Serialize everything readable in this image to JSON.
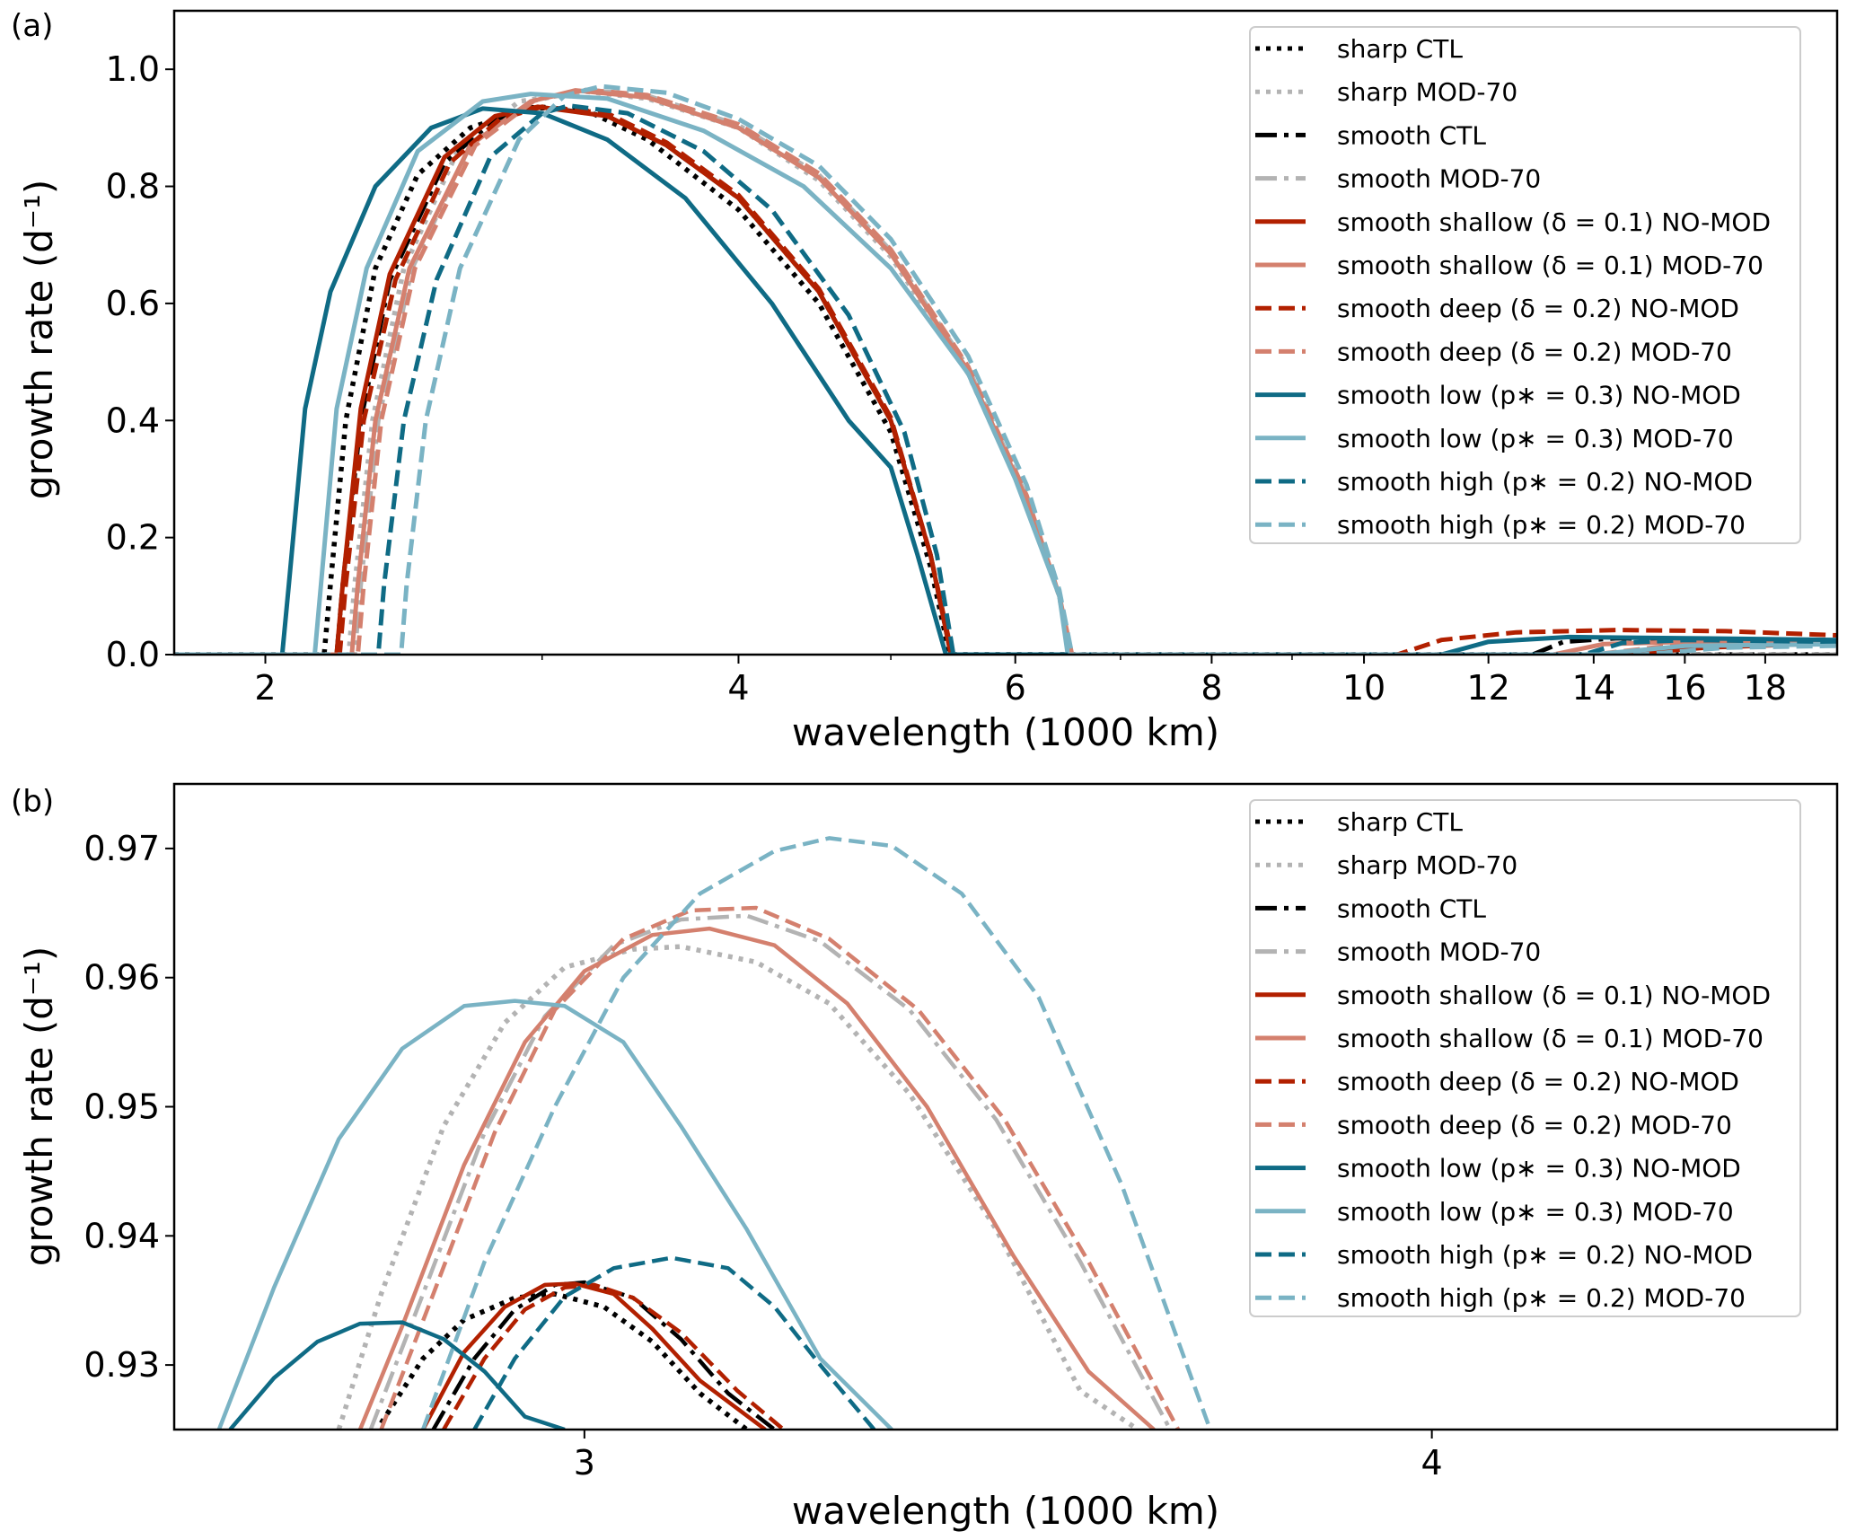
{
  "chart_data": [
    {
      "type": "line",
      "panel_label": "(a)",
      "xlabel": "wavelength (1000 km)",
      "ylabel": "growth rate (d⁻¹)",
      "xscale": "log",
      "xlim": [
        1.75,
        20
      ],
      "ylim": [
        0.0,
        1.1
      ],
      "xticks": [
        2,
        4,
        6,
        8,
        10,
        12,
        14,
        16,
        18
      ],
      "xtick_labels": [
        "2",
        "4",
        "6",
        "8",
        "10",
        "12",
        "14",
        "16",
        "18"
      ],
      "xminor": [
        3,
        5,
        7,
        9
      ],
      "yticks": [
        0.0,
        0.2,
        0.4,
        0.6,
        0.8,
        1.0
      ],
      "ytick_labels": [
        "0.0",
        "0.2",
        "0.4",
        "0.6",
        "0.8",
        "1.0"
      ],
      "grid": false,
      "legend_position": "top-right",
      "series": [
        {
          "name": "sharp CTL",
          "color": "#000000",
          "style": "dotted",
          "alpha": 1.0,
          "x": [
            1.75,
            2.18,
            2.2,
            2.25,
            2.35,
            2.5,
            2.7,
            2.95,
            3.2,
            3.5,
            4.0,
            4.5,
            5.0,
            5.3,
            5.45,
            5.46,
            20
          ],
          "y": [
            0,
            0,
            0.12,
            0.4,
            0.66,
            0.82,
            0.9,
            0.935,
            0.93,
            0.88,
            0.76,
            0.6,
            0.38,
            0.15,
            0,
            0,
            0
          ]
        },
        {
          "name": "sharp MOD-70",
          "color": "#b3b3b3",
          "style": "dotted",
          "alpha": 1.0,
          "x": [
            1.75,
            2.26,
            2.28,
            2.34,
            2.45,
            2.65,
            2.9,
            3.2,
            3.5,
            4.0,
            4.5,
            5.0,
            5.6,
            6.1,
            6.4,
            6.5,
            6.51,
            20
          ],
          "y": [
            0,
            0,
            0.12,
            0.4,
            0.66,
            0.86,
            0.945,
            0.962,
            0.95,
            0.9,
            0.81,
            0.68,
            0.48,
            0.26,
            0.1,
            0,
            0,
            0
          ]
        },
        {
          "name": "smooth CTL",
          "color": "#000000",
          "style": "dashdot",
          "alpha": 1.0,
          "x": [
            1.75,
            2.22,
            2.24,
            2.3,
            2.4,
            2.6,
            2.8,
            3.0,
            3.3,
            3.6,
            4.0,
            4.5,
            5.0,
            5.3,
            5.46,
            5.47,
            12.8,
            13.4,
            14.5,
            16.0,
            20
          ],
          "y": [
            0,
            0,
            0.12,
            0.4,
            0.64,
            0.84,
            0.915,
            0.936,
            0.92,
            0.87,
            0.78,
            0.62,
            0.4,
            0.17,
            0,
            0,
            0,
            0.022,
            0.028,
            0.025,
            0.02
          ]
        },
        {
          "name": "smooth MOD-70",
          "color": "#b3b3b3",
          "style": "dashdot",
          "alpha": 1.0,
          "x": [
            1.75,
            2.28,
            2.3,
            2.36,
            2.48,
            2.7,
            2.95,
            3.2,
            3.5,
            4.0,
            4.5,
            5.0,
            5.6,
            6.1,
            6.4,
            6.5,
            6.51,
            20
          ],
          "y": [
            0,
            0,
            0.12,
            0.4,
            0.66,
            0.87,
            0.945,
            0.965,
            0.955,
            0.905,
            0.82,
            0.69,
            0.49,
            0.27,
            0.1,
            0,
            0,
            0
          ]
        },
        {
          "name": "smooth shallow (δ = 0.1) NO-MOD",
          "color": "#b22000",
          "style": "solid",
          "alpha": 1.0,
          "x": [
            1.75,
            2.22,
            2.24,
            2.3,
            2.4,
            2.6,
            2.8,
            2.98,
            3.3,
            3.6,
            4.0,
            4.5,
            5.0,
            5.3,
            5.46,
            5.47,
            14.5,
            16.5,
            20
          ],
          "y": [
            0,
            0,
            0.12,
            0.42,
            0.65,
            0.85,
            0.92,
            0.936,
            0.92,
            0.87,
            0.78,
            0.62,
            0.4,
            0.17,
            0,
            0,
            0,
            0.012,
            0.02
          ]
        },
        {
          "name": "smooth shallow (δ = 0.1) MOD-70",
          "color": "#d4806e",
          "style": "solid",
          "alpha": 1.0,
          "x": [
            1.75,
            2.27,
            2.29,
            2.35,
            2.47,
            2.7,
            2.95,
            3.15,
            3.5,
            4.0,
            4.5,
            5.0,
            5.6,
            6.1,
            6.4,
            6.5,
            6.51,
            13.2,
            14.2,
            16.0,
            20
          ],
          "y": [
            0,
            0,
            0.12,
            0.4,
            0.66,
            0.87,
            0.945,
            0.964,
            0.952,
            0.9,
            0.815,
            0.685,
            0.485,
            0.265,
            0.1,
            0,
            0,
            0,
            0.018,
            0.022,
            0.018
          ]
        },
        {
          "name": "smooth deep (δ = 0.2) NO-MOD",
          "color": "#b22000",
          "style": "dashed",
          "alpha": 1.0,
          "x": [
            1.75,
            2.23,
            2.25,
            2.31,
            2.42,
            2.62,
            2.82,
            3.0,
            3.3,
            3.6,
            4.0,
            4.5,
            5.0,
            5.3,
            5.47,
            5.48,
            10.5,
            11.2,
            12.5,
            14.5,
            17.0,
            20
          ],
          "y": [
            0,
            0,
            0.12,
            0.4,
            0.64,
            0.84,
            0.915,
            0.936,
            0.925,
            0.875,
            0.785,
            0.625,
            0.405,
            0.17,
            0,
            0,
            0,
            0.025,
            0.038,
            0.042,
            0.04,
            0.033
          ]
        },
        {
          "name": "smooth deep (δ = 0.2) MOD-70",
          "color": "#d4806e",
          "style": "dashed",
          "alpha": 1.0,
          "x": [
            1.75,
            2.29,
            2.31,
            2.37,
            2.49,
            2.72,
            2.97,
            3.2,
            3.5,
            4.0,
            4.5,
            5.0,
            5.6,
            6.1,
            6.4,
            6.52,
            6.53,
            14.0,
            16.0,
            20
          ],
          "y": [
            0,
            0,
            0.12,
            0.4,
            0.66,
            0.87,
            0.948,
            0.965,
            0.956,
            0.906,
            0.822,
            0.692,
            0.492,
            0.272,
            0.1,
            0,
            0,
            0,
            0.018,
            0.02
          ]
        },
        {
          "name": "smooth low (p∗ = 0.3) NO-MOD",
          "color": "#0f6b85",
          "style": "solid",
          "alpha": 1.0,
          "x": [
            1.75,
            2.05,
            2.07,
            2.12,
            2.2,
            2.35,
            2.55,
            2.75,
            3.0,
            3.3,
            3.7,
            4.2,
            4.7,
            5.0,
            5.2,
            5.42,
            5.43,
            11.2,
            12.0,
            13.5,
            16.0,
            20
          ],
          "y": [
            0,
            0,
            0.12,
            0.42,
            0.62,
            0.8,
            0.9,
            0.933,
            0.925,
            0.88,
            0.78,
            0.6,
            0.4,
            0.32,
            0.17,
            0,
            0,
            0,
            0.022,
            0.03,
            0.028,
            0.025
          ]
        },
        {
          "name": "smooth low (p∗ = 0.3) MOD-70",
          "color": "#7ab3c4",
          "style": "solid",
          "alpha": 1.0,
          "x": [
            1.75,
            2.15,
            2.17,
            2.22,
            2.32,
            2.5,
            2.75,
            2.95,
            3.3,
            3.8,
            4.4,
            5.0,
            5.6,
            6.0,
            6.4,
            6.48,
            6.49,
            14.0,
            16.0,
            20
          ],
          "y": [
            0,
            0,
            0.12,
            0.42,
            0.66,
            0.86,
            0.945,
            0.958,
            0.95,
            0.895,
            0.8,
            0.66,
            0.48,
            0.3,
            0.1,
            0,
            0,
            0,
            0.015,
            0.018
          ]
        },
        {
          "name": "smooth high (p∗ = 0.2) NO-MOD",
          "color": "#0f6b85",
          "style": "dashed",
          "alpha": 1.0,
          "x": [
            1.75,
            2.36,
            2.38,
            2.45,
            2.57,
            2.78,
            3.0,
            3.12,
            3.4,
            3.8,
            4.2,
            4.7,
            5.1,
            5.35,
            5.48,
            5.49,
            13.8,
            14.6,
            16.0,
            20
          ],
          "y": [
            0,
            0,
            0.12,
            0.4,
            0.64,
            0.85,
            0.925,
            0.938,
            0.925,
            0.86,
            0.76,
            0.58,
            0.38,
            0.17,
            0,
            0,
            0,
            0.02,
            0.025,
            0.022
          ]
        },
        {
          "name": "smooth high (p∗ = 0.2) MOD-70",
          "color": "#7ab3c4",
          "style": "dashed",
          "alpha": 1.0,
          "x": [
            1.75,
            2.44,
            2.46,
            2.53,
            2.66,
            2.9,
            3.1,
            3.27,
            3.6,
            4.0,
            4.5,
            5.0,
            5.6,
            6.1,
            6.4,
            6.52,
            6.53,
            15.0,
            17.0,
            20
          ],
          "y": [
            0,
            0,
            0.12,
            0.4,
            0.66,
            0.88,
            0.955,
            0.971,
            0.96,
            0.915,
            0.835,
            0.71,
            0.51,
            0.29,
            0.11,
            0,
            0,
            0,
            0.012,
            0.015
          ]
        }
      ]
    },
    {
      "type": "line",
      "panel_label": "(b)",
      "xlabel": "wavelength (1000 km)",
      "ylabel": "growth rate (d⁻¹)",
      "xscale": "log",
      "xlim": [
        2.61,
        4.59
      ],
      "ylim": [
        0.925,
        0.975
      ],
      "xticks": [
        3,
        4
      ],
      "xtick_labels": [
        "3",
        "4"
      ],
      "yticks": [
        0.93,
        0.94,
        0.95,
        0.96,
        0.97
      ],
      "ytick_labels": [
        "0.93",
        "0.94",
        "0.95",
        "0.96",
        "0.97"
      ],
      "grid": false,
      "legend_position": "top-right",
      "series": [
        {
          "name": "sharp CTL",
          "color": "#000000",
          "style": "dotted",
          "x": [
            2.8,
            2.84,
            2.88,
            2.93,
            2.97,
            3.02,
            3.07,
            3.12,
            3.17
          ],
          "y": [
            0.9255,
            0.9305,
            0.9335,
            0.9352,
            0.9355,
            0.9345,
            0.9318,
            0.9278,
            0.925
          ]
        },
        {
          "name": "sharp MOD-70",
          "color": "#b3b3b3",
          "style": "dotted",
          "x": [
            2.76,
            2.8,
            2.86,
            2.92,
            2.98,
            3.05,
            3.1,
            3.18,
            3.26,
            3.35,
            3.45,
            3.55,
            3.62
          ],
          "y": [
            0.925,
            0.9355,
            0.9485,
            0.9565,
            0.9608,
            0.9622,
            0.9624,
            0.9612,
            0.958,
            0.951,
            0.9405,
            0.928,
            0.925
          ]
        },
        {
          "name": "smooth CTL",
          "color": "#000000",
          "style": "dashdot",
          "x": [
            2.85,
            2.89,
            2.93,
            2.97,
            3.0,
            3.05,
            3.1,
            3.15,
            3.2
          ],
          "y": [
            0.925,
            0.9305,
            0.9343,
            0.9362,
            0.9364,
            0.9352,
            0.932,
            0.9278,
            0.925
          ]
        },
        {
          "name": "smooth MOD-70",
          "color": "#b3b3b3",
          "style": "dashdot",
          "x": [
            2.79,
            2.84,
            2.9,
            2.96,
            3.03,
            3.1,
            3.17,
            3.25,
            3.35,
            3.45,
            3.55,
            3.66
          ],
          "y": [
            0.925,
            0.9355,
            0.948,
            0.957,
            0.9625,
            0.9645,
            0.9648,
            0.9628,
            0.9575,
            0.949,
            0.938,
            0.925
          ]
        },
        {
          "name": "smooth shallow (δ = 0.1) NO-MOD",
          "color": "#b22000",
          "style": "solid",
          "x": [
            2.84,
            2.88,
            2.92,
            2.96,
            2.99,
            3.03,
            3.07,
            3.12,
            3.19
          ],
          "y": [
            0.925,
            0.931,
            0.9345,
            0.9362,
            0.9363,
            0.9355,
            0.9328,
            0.9288,
            0.925
          ]
        },
        {
          "name": "smooth shallow (δ = 0.1) MOD-70",
          "color": "#d4806e",
          "style": "solid",
          "x": [
            2.78,
            2.82,
            2.88,
            2.94,
            3.0,
            3.07,
            3.13,
            3.2,
            3.28,
            3.37,
            3.47,
            3.56,
            3.64
          ],
          "y": [
            0.925,
            0.933,
            0.9455,
            0.955,
            0.9605,
            0.9633,
            0.9638,
            0.9625,
            0.958,
            0.95,
            0.9385,
            0.9295,
            0.925
          ]
        },
        {
          "name": "smooth deep (δ = 0.2) NO-MOD",
          "color": "#b22000",
          "style": "dashed",
          "x": [
            2.86,
            2.9,
            2.94,
            2.98,
            3.01,
            3.05,
            3.1,
            3.16,
            3.21
          ],
          "y": [
            0.925,
            0.9305,
            0.9343,
            0.936,
            0.9362,
            0.9352,
            0.9325,
            0.928,
            0.925
          ]
        },
        {
          "name": "smooth deep (δ = 0.2) MOD-70",
          "color": "#d4806e",
          "style": "dashed",
          "x": [
            2.8,
            2.85,
            2.91,
            2.97,
            3.04,
            3.11,
            3.18,
            3.26,
            3.36,
            3.46,
            3.56,
            3.67
          ],
          "y": [
            0.925,
            0.9355,
            0.948,
            0.9575,
            0.963,
            0.9652,
            0.9654,
            0.963,
            0.9575,
            0.949,
            0.938,
            0.925
          ]
        },
        {
          "name": "smooth low (p∗ = 0.3) NO-MOD",
          "color": "#0f6b85",
          "style": "solid",
          "x": [
            2.66,
            2.7,
            2.74,
            2.78,
            2.82,
            2.86,
            2.9,
            2.94,
            2.98
          ],
          "y": [
            0.925,
            0.929,
            0.9318,
            0.9332,
            0.9333,
            0.932,
            0.9295,
            0.926,
            0.925
          ]
        },
        {
          "name": "smooth low (p∗ = 0.3) MOD-70",
          "color": "#7ab3c4",
          "style": "solid",
          "x": [
            2.65,
            2.7,
            2.76,
            2.82,
            2.88,
            2.93,
            2.98,
            3.04,
            3.1,
            3.17,
            3.25,
            3.33
          ],
          "y": [
            0.925,
            0.936,
            0.9475,
            0.9545,
            0.9578,
            0.9582,
            0.9578,
            0.955,
            0.9485,
            0.9405,
            0.9305,
            0.925
          ]
        },
        {
          "name": "smooth high (p∗ = 0.2) NO-MOD",
          "color": "#0f6b85",
          "style": "dashed",
          "x": [
            2.89,
            2.93,
            2.98,
            3.03,
            3.09,
            3.15,
            3.2,
            3.25,
            3.31
          ],
          "y": [
            0.925,
            0.9305,
            0.9353,
            0.9375,
            0.9383,
            0.9375,
            0.9345,
            0.93,
            0.925
          ]
        },
        {
          "name": "smooth high (p∗ = 0.2) MOD-70",
          "color": "#7ab3c4",
          "style": "dashed",
          "x": [
            2.84,
            2.9,
            2.97,
            3.04,
            3.12,
            3.2,
            3.26,
            3.33,
            3.41,
            3.5,
            3.6,
            3.71
          ],
          "y": [
            0.925,
            0.938,
            0.95,
            0.96,
            0.9665,
            0.9698,
            0.9708,
            0.9702,
            0.9665,
            0.9585,
            0.944,
            0.925
          ]
        }
      ]
    }
  ]
}
